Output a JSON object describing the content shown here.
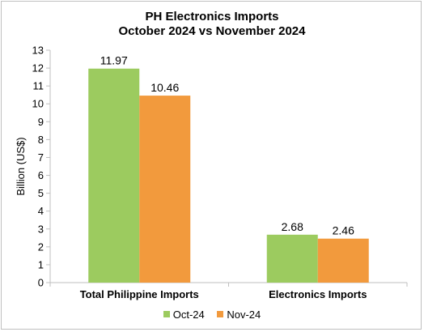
{
  "chart_data": {
    "type": "bar",
    "title": "PH Electronics Imports",
    "subtitle": "October 2024 vs November 2024",
    "xlabel": "",
    "ylabel": "Billion (US$)",
    "ylim": [
      0,
      13
    ],
    "yticks": [
      0,
      1,
      2,
      3,
      4,
      5,
      6,
      7,
      8,
      9,
      10,
      11,
      12,
      13
    ],
    "categories": [
      "Total Philippine Imports",
      "Electronics Imports"
    ],
    "series": [
      {
        "name": "Oct-24",
        "color": "#9ccb5f",
        "values": [
          11.97,
          2.68
        ],
        "labels": [
          "11.97",
          "2.68"
        ]
      },
      {
        "name": "Nov-24",
        "color": "#f29a3d",
        "values": [
          10.46,
          2.46
        ],
        "labels": [
          "10.46",
          "2.46"
        ]
      }
    ],
    "grid": false,
    "legend": "bottom"
  }
}
